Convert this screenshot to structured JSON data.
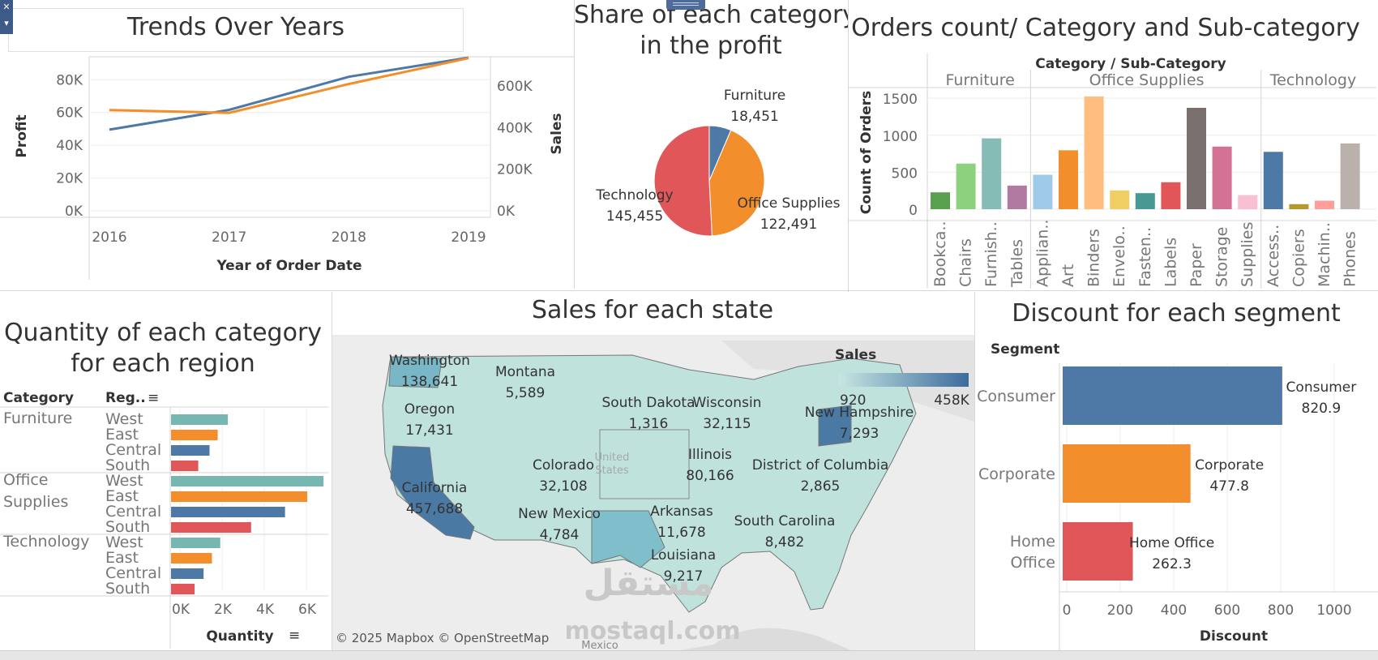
{
  "toolbar": {
    "close_glyph": "✕",
    "menu_glyph": "▾"
  },
  "trends": {
    "title": "Trends Over Years",
    "chart_data": {
      "type": "line",
      "title": "Trends Over Years",
      "xlabel": "Year of Order Date",
      "ylabel": "Profit",
      "y2label": "Sales",
      "x": [
        "2016",
        "2017",
        "2018",
        "2019"
      ],
      "series": [
        {
          "name": "Profit",
          "axis": "left",
          "color": "#4e79a7",
          "values": [
            49544,
            61619,
            81795,
            93439
          ]
        },
        {
          "name": "Sales",
          "axis": "right",
          "color": "#f28e2b",
          "values": [
            484247,
            470533,
            609206,
            733215
          ]
        }
      ],
      "ylim": [
        0,
        94000
      ],
      "y2lim": [
        0,
        740000
      ],
      "yticks": [
        "0K",
        "20K",
        "40K",
        "60K",
        "80K"
      ],
      "y2ticks": [
        "0K",
        "200K",
        "400K",
        "600K"
      ]
    }
  },
  "share": {
    "title_line1": "Share of each category",
    "title_line2": "in the profit",
    "chart_data": {
      "type": "pie",
      "title": "Share of each category in the profit",
      "slices": [
        {
          "label": "Furniture",
          "value": 18451,
          "display": "18,451",
          "color": "#4e79a7"
        },
        {
          "label": "Office Supplies",
          "value": 122491,
          "display": "122,491",
          "color": "#f28e2b"
        },
        {
          "label": "Technology",
          "value": 145455,
          "display": "145,455",
          "color": "#e15759"
        }
      ]
    }
  },
  "orders": {
    "title": "Orders count/ Category and Sub-category",
    "header": "Category / Sub-Category",
    "chart_data": {
      "type": "bar",
      "title": "Orders count/ Category and Sub-category",
      "ylabel": "Count of Orders",
      "ylim": [
        0,
        1600
      ],
      "yticks": [
        0,
        500,
        1000,
        1500
      ],
      "groups": [
        {
          "name": "Furniture",
          "bars": [
            {
              "label": "Bookca..",
              "value": 228,
              "color": "#59a14f"
            },
            {
              "label": "Chairs",
              "value": 617,
              "color": "#8cd17d"
            },
            {
              "label": "Furnish..",
              "value": 957,
              "color": "#86bcb6"
            },
            {
              "label": "Tables",
              "value": 319,
              "color": "#b07aa1"
            }
          ]
        },
        {
          "name": "Office Supplies",
          "bars": [
            {
              "label": "Applian..",
              "value": 466,
              "color": "#a0cbe8"
            },
            {
              "label": "Art",
              "value": 796,
              "color": "#f28e2b"
            },
            {
              "label": "Binders",
              "value": 1523,
              "color": "#ffbe7d"
            },
            {
              "label": "Envelo..",
              "value": 254,
              "color": "#f1ce63"
            },
            {
              "label": "Fasten..",
              "value": 217,
              "color": "#499894"
            },
            {
              "label": "Labels",
              "value": 364,
              "color": "#e15759"
            },
            {
              "label": "Paper",
              "value": 1370,
              "color": "#79706e"
            },
            {
              "label": "Storage",
              "value": 846,
              "color": "#d37295"
            },
            {
              "label": "Supplies",
              "value": 190,
              "color": "#fabfd2"
            }
          ]
        },
        {
          "name": "Technology",
          "bars": [
            {
              "label": "Access..",
              "value": 775,
              "color": "#4e79a7"
            },
            {
              "label": "Copiers",
              "value": 68,
              "color": "#b6992d"
            },
            {
              "label": "Machin..",
              "value": 115,
              "color": "#ff9d9a"
            },
            {
              "label": "Phones",
              "value": 889,
              "color": "#bab0ac"
            }
          ]
        }
      ]
    }
  },
  "quantity": {
    "title_line1": "Quantity of each category",
    "title_line2": "for each region",
    "col_category": "Category",
    "col_region": "Reg..",
    "sort_glyph": "≡",
    "chart_data": {
      "type": "bar",
      "orientation": "horizontal",
      "title": "Quantity of each category for each region",
      "xlabel": "Quantity",
      "xlim": [
        0,
        7500
      ],
      "xticks": [
        "0K",
        "2K",
        "4K",
        "6K"
      ],
      "region_colors": {
        "West": "#76b7b2",
        "East": "#f28e2b",
        "Central": "#4e79a7",
        "South": "#e15759"
      },
      "groups": [
        {
          "category_lines": [
            "Furniture"
          ],
          "rows": [
            {
              "region": "West",
              "value": 2696
            },
            {
              "region": "East",
              "value": 2214
            },
            {
              "region": "Central",
              "value": 1827
            },
            {
              "region": "South",
              "value": 1291
            }
          ]
        },
        {
          "category_lines": [
            "Office",
            "Supplies"
          ],
          "rows": [
            {
              "region": "West",
              "value": 7235
            },
            {
              "region": "East",
              "value": 6462
            },
            {
              "region": "Central",
              "value": 5409
            },
            {
              "region": "South",
              "value": 3800
            }
          ]
        },
        {
          "category_lines": [
            "Technology"
          ],
          "rows": [
            {
              "region": "West",
              "value": 2335
            },
            {
              "region": "East",
              "value": 1942
            },
            {
              "region": "Central",
              "value": 1544
            },
            {
              "region": "South",
              "value": 1118
            }
          ]
        }
      ]
    }
  },
  "map": {
    "title": "Sales for each state",
    "legend_title": "Sales",
    "legend_min": "920",
    "legend_max": "458K",
    "country_label_line1": "United",
    "country_label_line2": "States",
    "mexico_label": "Mexico",
    "attribution": "© 2025 Mapbox © OpenStreetMap",
    "watermark_text": "mostaql.com",
    "watermark_logo": "مستقل",
    "states": [
      {
        "name": "Washington",
        "value": "138,641"
      },
      {
        "name": "Montana",
        "value": "5,589"
      },
      {
        "name": "Oregon",
        "value": "17,431"
      },
      {
        "name": "South Dakota",
        "value": "1,316"
      },
      {
        "name": "Wisconsin",
        "value": "32,115"
      },
      {
        "name": "New Hampshire",
        "value": "7,293"
      },
      {
        "name": "Illinois",
        "value": "80,166"
      },
      {
        "name": "Colorado",
        "value": "32,108"
      },
      {
        "name": "District of Columbia",
        "value": "2,865"
      },
      {
        "name": "California",
        "value": "457,688"
      },
      {
        "name": "New Mexico",
        "value": "4,784"
      },
      {
        "name": "Arkansas",
        "value": "11,678"
      },
      {
        "name": "South Carolina",
        "value": "8,482"
      },
      {
        "name": "Louisiana",
        "value": "9,217"
      }
    ]
  },
  "discount": {
    "title": "Discount for each segment",
    "col_segment": "Segment",
    "chart_data": {
      "type": "bar",
      "orientation": "horizontal",
      "title": "Discount for each segment",
      "xlabel": "Discount",
      "xlim": [
        0,
        1000
      ],
      "xticks": [
        0,
        200,
        400,
        600,
        800,
        1000
      ],
      "bars": [
        {
          "segment_lines": [
            "Consumer"
          ],
          "label": "Consumer",
          "value": 820.9,
          "display": "820.9",
          "color": "#4e79a7"
        },
        {
          "segment_lines": [
            "Corporate"
          ],
          "label": "Corporate",
          "value": 477.8,
          "display": "477.8",
          "color": "#f28e2b"
        },
        {
          "segment_lines": [
            "Home",
            "Office"
          ],
          "label": "Home Office",
          "value": 262.3,
          "display": "262.3",
          "color": "#e15759"
        }
      ]
    }
  }
}
